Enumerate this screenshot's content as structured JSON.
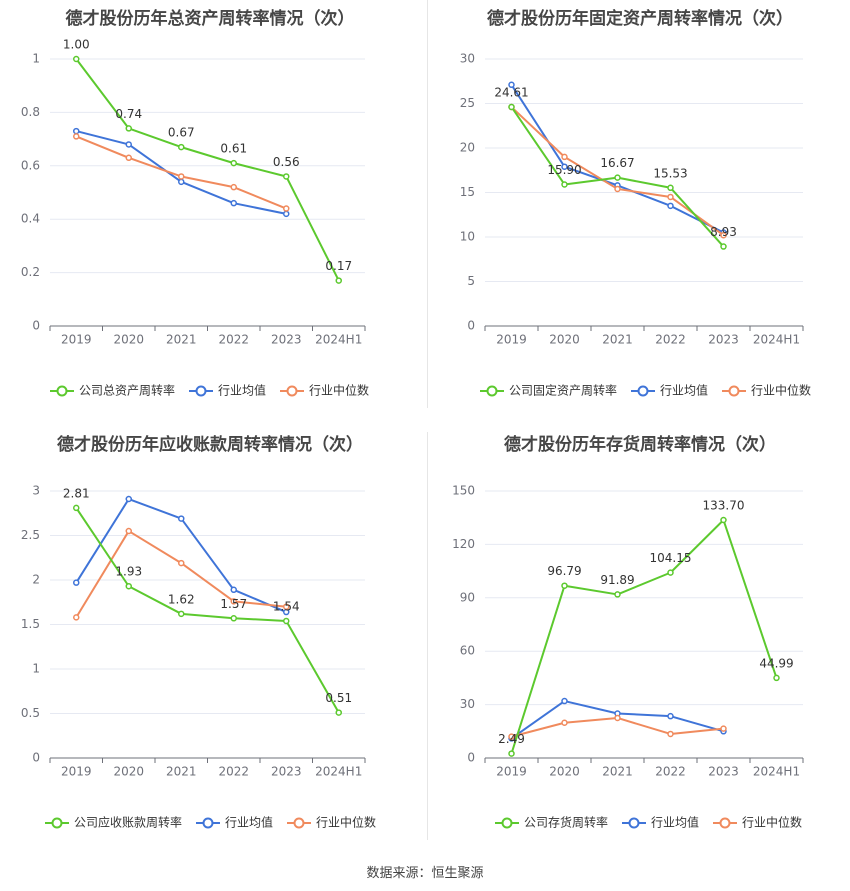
{
  "colors": {
    "company": "#5cc92e",
    "industry_avg": "#3f74d8",
    "industry_median": "#f08a5d",
    "grid": "#e6e9f2",
    "axis": "#6e7079"
  },
  "footer": {
    "source": "数据来源：恒生聚源"
  },
  "chart_data": [
    {
      "type": "line",
      "title": "德才股份历年总资产周转率情况（次）",
      "categories": [
        "2019",
        "2020",
        "2021",
        "2022",
        "2023",
        "2024H1"
      ],
      "ylim": [
        0,
        1
      ],
      "yticks": [
        "0",
        "0.2",
        "0.4",
        "0.6",
        "0.8",
        "1"
      ],
      "ytick_values": [
        0,
        0.2,
        0.4,
        0.6,
        0.8,
        1
      ],
      "series": [
        {
          "name": "公司总资产周转率",
          "key": "company",
          "values": [
            1.0,
            0.74,
            0.67,
            0.61,
            0.56,
            0.17
          ],
          "labels": [
            "1.00",
            "0.74",
            "0.67",
            "0.61",
            "0.56",
            "0.17"
          ]
        },
        {
          "name": "行业均值",
          "key": "industry_avg",
          "values": [
            0.73,
            0.68,
            0.54,
            0.46,
            0.42,
            null
          ]
        },
        {
          "name": "行业中位数",
          "key": "industry_median",
          "values": [
            0.71,
            0.63,
            0.56,
            0.52,
            0.44,
            null
          ]
        }
      ],
      "legend": "bottom",
      "grid": true
    },
    {
      "type": "line",
      "title": "德才股份历年固定资产周转率情况（次）",
      "categories": [
        "2019",
        "2020",
        "2021",
        "2022",
        "2023",
        "2024H1"
      ],
      "ylim": [
        0,
        30
      ],
      "yticks": [
        "0",
        "5",
        "10",
        "15",
        "20",
        "25",
        "30"
      ],
      "ytick_values": [
        0,
        5,
        10,
        15,
        20,
        25,
        30
      ],
      "series": [
        {
          "name": "公司固定资产周转率",
          "key": "company",
          "values": [
            24.61,
            15.9,
            16.67,
            15.53,
            8.93,
            null
          ],
          "labels": [
            "24.61",
            "15.90",
            "16.67",
            "15.53",
            "8.93",
            null
          ]
        },
        {
          "name": "行业均值",
          "key": "industry_avg",
          "values": [
            27.1,
            17.9,
            15.8,
            13.5,
            10.5,
            null
          ]
        },
        {
          "name": "行业中位数",
          "key": "industry_median",
          "values": [
            24.6,
            19.0,
            15.4,
            14.5,
            10.2,
            null
          ]
        }
      ],
      "legend": "bottom",
      "grid": true
    },
    {
      "type": "line",
      "title": "德才股份历年应收账款周转率情况（次）",
      "categories": [
        "2019",
        "2020",
        "2021",
        "2022",
        "2023",
        "2024H1"
      ],
      "ylim": [
        0,
        3
      ],
      "yticks": [
        "0",
        "0.5",
        "1",
        "1.5",
        "2",
        "2.5",
        "3"
      ],
      "ytick_values": [
        0,
        0.5,
        1,
        1.5,
        2,
        2.5,
        3
      ],
      "series": [
        {
          "name": "公司应收账款周转率",
          "key": "company",
          "values": [
            2.81,
            1.93,
            1.62,
            1.57,
            1.54,
            0.51
          ],
          "labels": [
            "2.81",
            "1.93",
            "1.62",
            "1.57",
            "1.54",
            "0.51"
          ]
        },
        {
          "name": "行业均值",
          "key": "industry_avg",
          "values": [
            1.97,
            2.91,
            2.69,
            1.89,
            1.64,
            null
          ]
        },
        {
          "name": "行业中位数",
          "key": "industry_median",
          "values": [
            1.58,
            2.55,
            2.19,
            1.76,
            1.7,
            null
          ]
        }
      ],
      "legend": "bottom",
      "grid": true
    },
    {
      "type": "line",
      "title": "德才股份历年存货周转率情况（次）",
      "categories": [
        "2019",
        "2020",
        "2021",
        "2022",
        "2023",
        "2024H1"
      ],
      "ylim": [
        0,
        150
      ],
      "yticks": [
        "0",
        "30",
        "60",
        "90",
        "120",
        "150"
      ],
      "ytick_values": [
        0,
        30,
        60,
        90,
        120,
        150
      ],
      "series": [
        {
          "name": "公司存货周转率",
          "key": "company",
          "values": [
            2.49,
            96.79,
            91.89,
            104.15,
            133.7,
            44.99
          ],
          "labels": [
            "2.49",
            "96.79",
            "91.89",
            "104.15",
            "133.70",
            "44.99"
          ]
        },
        {
          "name": "行业均值",
          "key": "industry_avg",
          "values": [
            11.0,
            32.0,
            25.0,
            23.5,
            15.0,
            null
          ]
        },
        {
          "name": "行业中位数",
          "key": "industry_median",
          "values": [
            12.0,
            19.8,
            22.5,
            13.5,
            16.5,
            null
          ]
        }
      ],
      "legend": "bottom",
      "grid": true
    }
  ]
}
